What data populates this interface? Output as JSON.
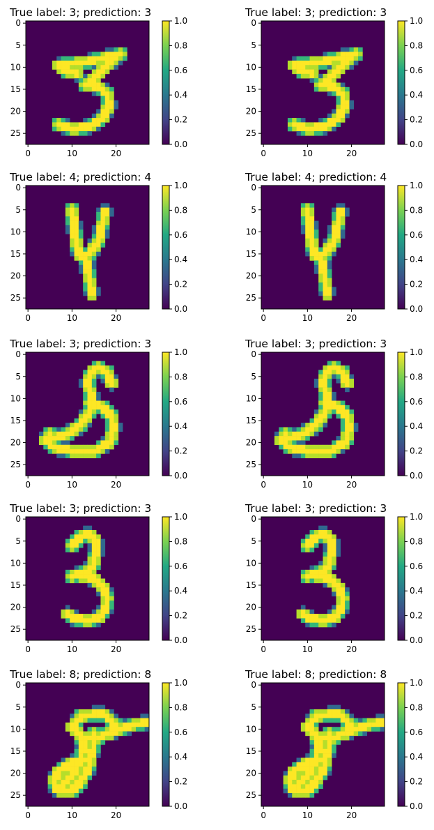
{
  "figure": {
    "background": "#ffffff",
    "layout": {
      "rows": 5,
      "cols": 2
    }
  },
  "chart_data": [
    {
      "type": "heatmap",
      "title": "True label: 3; prediction: 3",
      "digit": "3",
      "colormap": "viridis",
      "image_size": [
        28,
        28
      ],
      "xticks": [
        "0",
        "10",
        "20"
      ],
      "yticks": [
        "0",
        "5",
        "10",
        "15",
        "20",
        "25"
      ],
      "colorbar": {
        "range": [
          0.0,
          1.0
        ],
        "ticks": [
          "0.0",
          "0.2",
          "0.4",
          "0.6",
          "0.8",
          "1.0"
        ]
      }
    },
    {
      "type": "heatmap",
      "title": "True label: 3; prediction: 3",
      "digit": "3",
      "colormap": "viridis",
      "image_size": [
        28,
        28
      ],
      "xticks": [
        "0",
        "10",
        "20"
      ],
      "yticks": [
        "0",
        "5",
        "10",
        "15",
        "20",
        "25"
      ],
      "colorbar": {
        "range": [
          0.0,
          1.0
        ],
        "ticks": [
          "0.0",
          "0.2",
          "0.4",
          "0.6",
          "0.8",
          "1.0"
        ]
      }
    },
    {
      "type": "heatmap",
      "title": "True label: 4; prediction: 4",
      "digit": "4",
      "colormap": "viridis",
      "image_size": [
        28,
        28
      ],
      "xticks": [
        "0",
        "10",
        "20"
      ],
      "yticks": [
        "0",
        "5",
        "10",
        "15",
        "20",
        "25"
      ],
      "colorbar": {
        "range": [
          0.0,
          1.0
        ],
        "ticks": [
          "0.0",
          "0.2",
          "0.4",
          "0.6",
          "0.8",
          "1.0"
        ]
      }
    },
    {
      "type": "heatmap",
      "title": "True label: 4; prediction: 4",
      "digit": "4",
      "colormap": "viridis",
      "image_size": [
        28,
        28
      ],
      "xticks": [
        "0",
        "10",
        "20"
      ],
      "yticks": [
        "0",
        "5",
        "10",
        "15",
        "20",
        "25"
      ],
      "colorbar": {
        "range": [
          0.0,
          1.0
        ],
        "ticks": [
          "0.0",
          "0.2",
          "0.4",
          "0.6",
          "0.8",
          "1.0"
        ]
      }
    },
    {
      "type": "heatmap",
      "title": "True label: 3; prediction: 3",
      "digit": "3",
      "colormap": "viridis",
      "image_size": [
        28,
        28
      ],
      "xticks": [
        "0",
        "10",
        "20"
      ],
      "yticks": [
        "0",
        "5",
        "10",
        "15",
        "20",
        "25"
      ],
      "colorbar": {
        "range": [
          0.0,
          1.0
        ],
        "ticks": [
          "0.0",
          "0.2",
          "0.4",
          "0.6",
          "0.8",
          "1.0"
        ]
      }
    },
    {
      "type": "heatmap",
      "title": "True label: 3; prediction: 3",
      "digit": "3",
      "colormap": "viridis",
      "image_size": [
        28,
        28
      ],
      "xticks": [
        "0",
        "10",
        "20"
      ],
      "yticks": [
        "0",
        "5",
        "10",
        "15",
        "20",
        "25"
      ],
      "colorbar": {
        "range": [
          0.0,
          1.0
        ],
        "ticks": [
          "0.0",
          "0.2",
          "0.4",
          "0.6",
          "0.8",
          "1.0"
        ]
      }
    },
    {
      "type": "heatmap",
      "title": "True label: 3; prediction: 3",
      "digit": "3",
      "colormap": "viridis",
      "image_size": [
        28,
        28
      ],
      "xticks": [
        "0",
        "10",
        "20"
      ],
      "yticks": [
        "0",
        "5",
        "10",
        "15",
        "20",
        "25"
      ],
      "colorbar": {
        "range": [
          0.0,
          1.0
        ],
        "ticks": [
          "0.0",
          "0.2",
          "0.4",
          "0.6",
          "0.8",
          "1.0"
        ]
      }
    },
    {
      "type": "heatmap",
      "title": "True label: 3; prediction: 3",
      "digit": "3",
      "colormap": "viridis",
      "image_size": [
        28,
        28
      ],
      "xticks": [
        "0",
        "10",
        "20"
      ],
      "yticks": [
        "0",
        "5",
        "10",
        "15",
        "20",
        "25"
      ],
      "colorbar": {
        "range": [
          0.0,
          1.0
        ],
        "ticks": [
          "0.0",
          "0.2",
          "0.4",
          "0.6",
          "0.8",
          "1.0"
        ]
      }
    },
    {
      "type": "heatmap",
      "title": "True label: 8; prediction: 8",
      "digit": "8",
      "colormap": "viridis",
      "image_size": [
        28,
        28
      ],
      "xticks": [
        "0",
        "10",
        "20"
      ],
      "yticks": [
        "0",
        "5",
        "10",
        "15",
        "20",
        "25"
      ],
      "colorbar": {
        "range": [
          0.0,
          1.0
        ],
        "ticks": [
          "0.0",
          "0.2",
          "0.4",
          "0.6",
          "0.8",
          "1.0"
        ]
      }
    },
    {
      "type": "heatmap",
      "title": "True label: 8; prediction: 8",
      "digit": "8",
      "colormap": "viridis",
      "image_size": [
        28,
        28
      ],
      "xticks": [
        "0",
        "10",
        "20"
      ],
      "yticks": [
        "0",
        "5",
        "10",
        "15",
        "20",
        "25"
      ],
      "colorbar": {
        "range": [
          0.0,
          1.0
        ],
        "ticks": [
          "0.0",
          "0.2",
          "0.4",
          "0.6",
          "0.8",
          "1.0"
        ]
      }
    }
  ]
}
